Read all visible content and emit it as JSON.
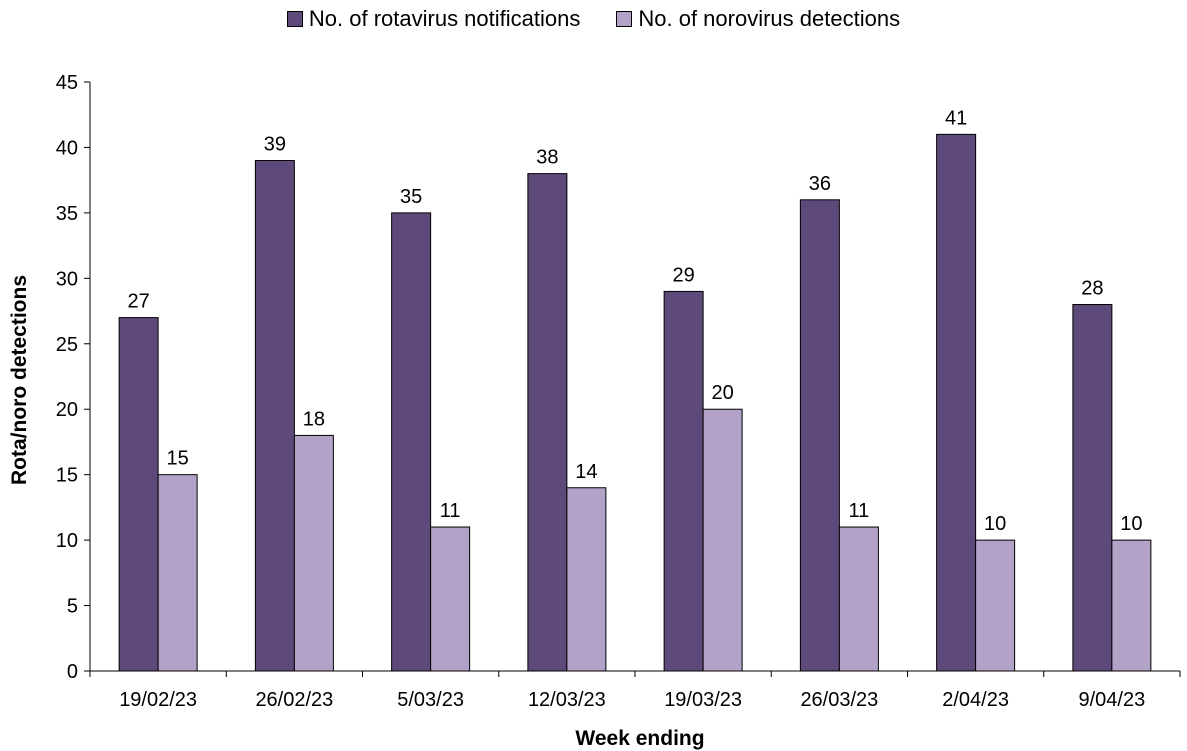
{
  "chart_data": {
    "type": "bar",
    "xlabel": "Week ending",
    "ylabel": "Rota/noro detections",
    "ylim": [
      0,
      45
    ],
    "yticks": [
      0,
      5,
      10,
      15,
      20,
      25,
      30,
      35,
      40,
      45
    ],
    "categories": [
      "19/02/23",
      "26/02/23",
      "5/03/23",
      "12/03/23",
      "19/03/23",
      "26/03/23",
      "2/04/23",
      "9/04/23"
    ],
    "series": [
      {
        "name": "No. of rotavirus notifications",
        "color": "#5e4a7a",
        "values": [
          27,
          39,
          35,
          38,
          29,
          36,
          41,
          28
        ]
      },
      {
        "name": "No. of norovirus detections",
        "color": "#b3a2c7",
        "values": [
          15,
          18,
          11,
          14,
          20,
          11,
          10,
          10
        ]
      }
    ],
    "grid": false,
    "legend_position": "top",
    "data_labels": true
  }
}
